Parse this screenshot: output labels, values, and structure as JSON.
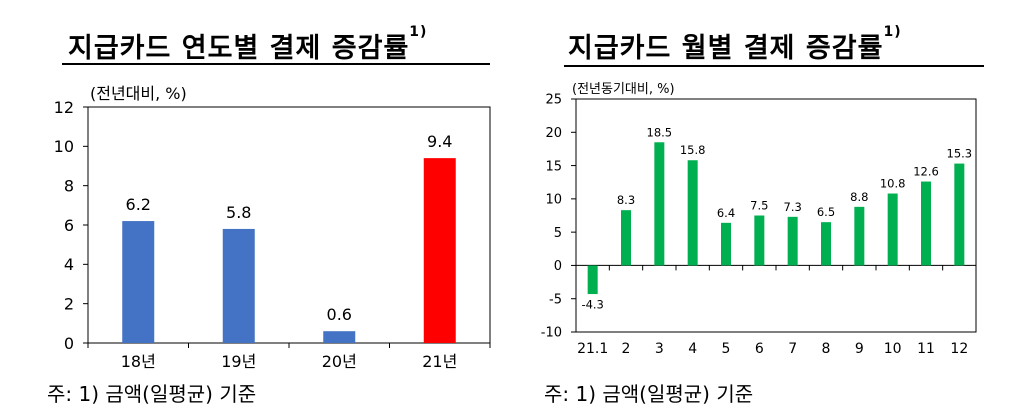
{
  "left": {
    "title": "지급카드 연도별 결제 증감률",
    "title_sup": "1)",
    "unit": "(전년대비, %)",
    "note": "주: 1) 금액(일평균) 기준"
  },
  "right": {
    "title": "지급카드 월별 결제 증감률",
    "title_sup": "1)",
    "unit": "(전년동기대비, %)",
    "note": "주: 1) 금액(일평균) 기준"
  },
  "colors": {
    "blue": "#4472C4",
    "red": "#FF0000",
    "green": "#00B050",
    "axis": "#000000"
  },
  "chart_data": [
    {
      "type": "bar",
      "categories": [
        "18년",
        "19년",
        "20년",
        "21년"
      ],
      "values": [
        6.2,
        5.8,
        0.6,
        9.4
      ],
      "data_labels": [
        "6.2",
        "5.8",
        "0.6",
        "9.4"
      ],
      "bar_colors": [
        "#4472C4",
        "#4472C4",
        "#4472C4",
        "#FF0000"
      ],
      "ylim": [
        0,
        12
      ],
      "yticks": [
        0,
        2,
        4,
        6,
        8,
        10,
        12
      ],
      "ytick_labels": [
        "0",
        "2",
        "4",
        "6",
        "8",
        "10",
        "12"
      ],
      "grid": false
    },
    {
      "type": "bar",
      "categories": [
        "21.1",
        "2",
        "3",
        "4",
        "5",
        "6",
        "7",
        "8",
        "9",
        "10",
        "11",
        "12"
      ],
      "values": [
        -4.3,
        8.3,
        18.5,
        15.8,
        6.4,
        7.5,
        7.3,
        6.5,
        8.8,
        10.8,
        12.6,
        15.3
      ],
      "data_labels": [
        "-4.3",
        "8.3",
        "18.5",
        "15.8",
        "6.4",
        "7.5",
        "7.3",
        "6.5",
        "8.8",
        "10.8",
        "12.6",
        "15.3"
      ],
      "bar_colors": [
        "#00B050"
      ],
      "ylim": [
        -10,
        25
      ],
      "yticks": [
        -10,
        -5,
        0,
        5,
        10,
        15,
        20,
        25
      ],
      "ytick_labels": [
        "-10",
        "-5",
        "0",
        "5",
        "10",
        "15",
        "20",
        "25"
      ],
      "grid": false
    }
  ]
}
